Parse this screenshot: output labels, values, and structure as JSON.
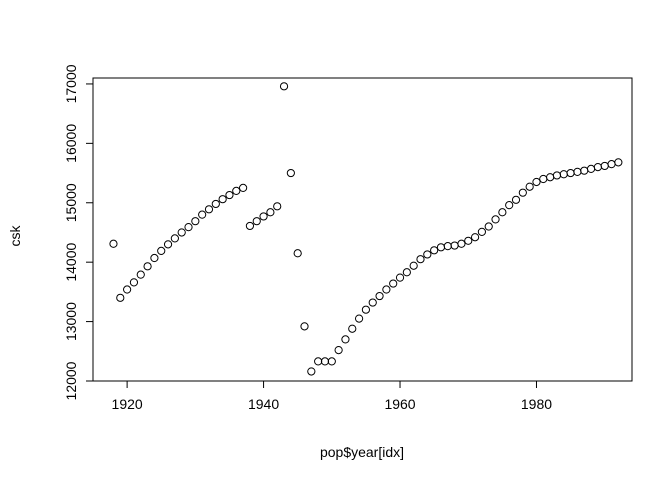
{
  "chart_data": {
    "type": "scatter",
    "xlabel": "pop$year[idx]",
    "ylabel": "csk",
    "xlim": [
      1915,
      1994
    ],
    "ylim": [
      12000,
      17100
    ],
    "xticks": [
      1920,
      1940,
      1960,
      1980
    ],
    "yticks": [
      12000,
      13000,
      14000,
      15000,
      16000,
      17000
    ],
    "grid": false,
    "marker": "open-circle",
    "marker_color": "#000000",
    "series": [
      {
        "x": [
          1918,
          1919,
          1920,
          1921,
          1922,
          1923,
          1924,
          1925,
          1926,
          1927,
          1928,
          1929,
          1930,
          1931,
          1932,
          1933,
          1934,
          1935,
          1936,
          1937,
          1938,
          1939,
          1940,
          1941,
          1942,
          1943,
          1944,
          1945,
          1946,
          1947,
          1948,
          1949,
          1950,
          1951,
          1952,
          1953,
          1954,
          1955,
          1956,
          1957,
          1958,
          1959,
          1960,
          1961,
          1962,
          1963,
          1964,
          1965,
          1966,
          1967,
          1968,
          1969,
          1970,
          1971,
          1972,
          1973,
          1974,
          1975,
          1976,
          1977,
          1978,
          1979,
          1980,
          1981,
          1982,
          1983,
          1984,
          1985,
          1986,
          1987,
          1988,
          1989,
          1990,
          1991,
          1992
        ],
        "y": [
          14310,
          13400,
          13540,
          13660,
          13790,
          13930,
          14070,
          14190,
          14300,
          14400,
          14500,
          14590,
          14690,
          14800,
          14890,
          14980,
          15060,
          15130,
          15200,
          15250,
          14610,
          14690,
          14770,
          14840,
          14940,
          16960,
          15500,
          14150,
          12920,
          12160,
          12330,
          12330,
          12330,
          12520,
          12700,
          12880,
          13050,
          13200,
          13320,
          13430,
          13540,
          13640,
          13740,
          13830,
          13940,
          14050,
          14130,
          14200,
          14250,
          14270,
          14280,
          14310,
          14360,
          14420,
          14510,
          14600,
          14720,
          14840,
          14960,
          15050,
          15170,
          15270,
          15350,
          15400,
          15430,
          15460,
          15480,
          15500,
          15520,
          15540,
          15570,
          15600,
          15620,
          15650,
          15680
        ]
      }
    ]
  }
}
